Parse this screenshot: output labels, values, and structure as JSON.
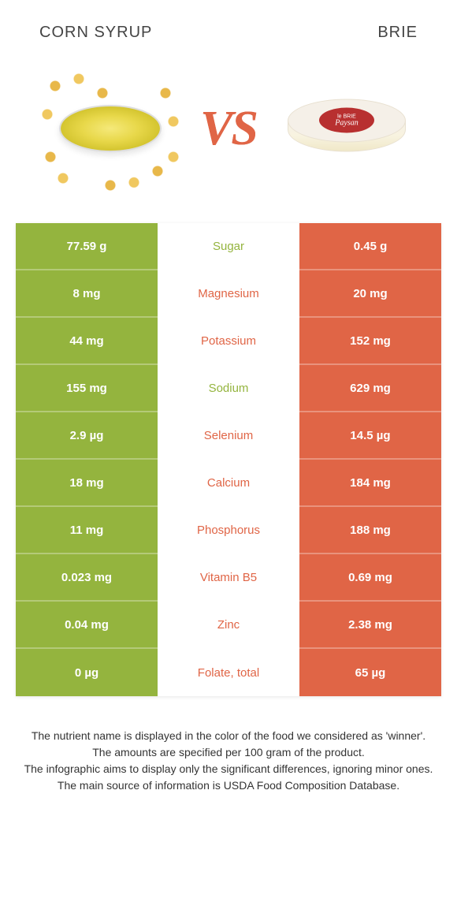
{
  "header": {
    "left_title": "CORN SYRUP",
    "right_title": "BRIE",
    "vs_label": "VS"
  },
  "colors": {
    "left_bg": "#94b43e",
    "right_bg": "#e06546",
    "left_text": "#94b43e",
    "right_text": "#e06546",
    "vs_color": "#e06546"
  },
  "brie_label": {
    "line1": "le BRIE",
    "line2": "Paysan"
  },
  "rows": [
    {
      "left": "77.59 g",
      "name": "Sugar",
      "right": "0.45 g",
      "winner": "left"
    },
    {
      "left": "8 mg",
      "name": "Magnesium",
      "right": "20 mg",
      "winner": "right"
    },
    {
      "left": "44 mg",
      "name": "Potassium",
      "right": "152 mg",
      "winner": "right"
    },
    {
      "left": "155 mg",
      "name": "Sodium",
      "right": "629 mg",
      "winner": "left"
    },
    {
      "left": "2.9 µg",
      "name": "Selenium",
      "right": "14.5 µg",
      "winner": "right"
    },
    {
      "left": "18 mg",
      "name": "Calcium",
      "right": "184 mg",
      "winner": "right"
    },
    {
      "left": "11 mg",
      "name": "Phosphorus",
      "right": "188 mg",
      "winner": "right"
    },
    {
      "left": "0.023 mg",
      "name": "Vitamin B5",
      "right": "0.69 mg",
      "winner": "right"
    },
    {
      "left": "0.04 mg",
      "name": "Zinc",
      "right": "2.38 mg",
      "winner": "right"
    },
    {
      "left": "0 µg",
      "name": "Folate, total",
      "right": "65 µg",
      "winner": "right"
    }
  ],
  "footnotes": [
    "The nutrient name is displayed in the color of the food we considered as 'winner'.",
    "The amounts are specified per 100 gram of the product.",
    "The infographic aims to display only the significant differences, ignoring minor ones.",
    "The main source of information is USDA Food Composition Database."
  ]
}
